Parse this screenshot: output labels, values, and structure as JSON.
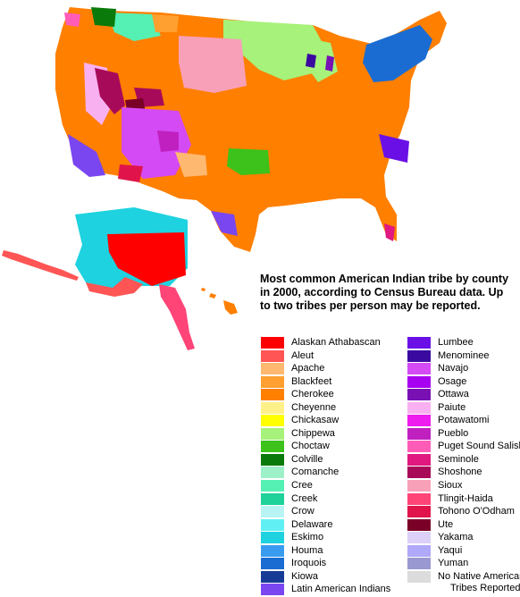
{
  "caption": "Most common American Indian tribe by county in 2000, according to Census Bureau data. Up to two tribes per person may be reported.",
  "legend": {
    "column1": [
      {
        "label": "Alaskan Athabascan",
        "color": "#ff0000"
      },
      {
        "label": "Aleut",
        "color": "#ff5555"
      },
      {
        "label": "Apache",
        "color": "#ffb870"
      },
      {
        "label": "Blackfeet",
        "color": "#ffa030"
      },
      {
        "label": "Cherokee",
        "color": "#ff7f00"
      },
      {
        "label": "Cheyenne",
        "color": "#fff08a"
      },
      {
        "label": "Chickasaw",
        "color": "#ffff00"
      },
      {
        "label": "Chippewa",
        "color": "#a6f27a"
      },
      {
        "label": "Choctaw",
        "color": "#3cc21a"
      },
      {
        "label": "Colville",
        "color": "#0a7a0a"
      },
      {
        "label": "Comanche",
        "color": "#9ef0c8"
      },
      {
        "label": "Cree",
        "color": "#55f0b4"
      },
      {
        "label": "Creek",
        "color": "#1ed29a"
      },
      {
        "label": "Crow",
        "color": "#b8f4f4"
      },
      {
        "label": "Delaware",
        "color": "#60f0f4"
      },
      {
        "label": "Eskimo",
        "color": "#1ed2e0"
      },
      {
        "label": "Houma",
        "color": "#3a9cf0"
      },
      {
        "label": "Iroquois",
        "color": "#1a6cd2"
      },
      {
        "label": "Kiowa",
        "color": "#163c96"
      },
      {
        "label": "Latin American Indians",
        "color": "#7a46f0"
      }
    ],
    "column2": [
      {
        "label": "Lumbee",
        "color": "#6a10e6"
      },
      {
        "label": "Menominee",
        "color": "#3a0aa0"
      },
      {
        "label": "Navajo",
        "color": "#d44af4"
      },
      {
        "label": "Osage",
        "color": "#a800f0"
      },
      {
        "label": "Ottawa",
        "color": "#7810b4"
      },
      {
        "label": "Paiute",
        "color": "#f8b0f0"
      },
      {
        "label": "Potawatomi",
        "color": "#ee1cee"
      },
      {
        "label": "Pueblo",
        "color": "#c020c0"
      },
      {
        "label": "Puget Sound Salish",
        "color": "#ff5cb8"
      },
      {
        "label": "Seminole",
        "color": "#e01880"
      },
      {
        "label": "Shoshone",
        "color": "#a80a5a"
      },
      {
        "label": "Sioux",
        "color": "#f8a0b8"
      },
      {
        "label": "Tlingit-Haida",
        "color": "#ff4478"
      },
      {
        "label": "Tohono O'Odham",
        "color": "#e0144a"
      },
      {
        "label": "Ute",
        "color": "#7a0028"
      },
      {
        "label": "Yakama",
        "color": "#dcd0f8"
      },
      {
        "label": "Yaqui",
        "color": "#b0a8f8"
      },
      {
        "label": "Yuman",
        "color": "#9a98d0"
      },
      {
        "label": "No Native American",
        "label2": "Tribes Reported",
        "color": "#dcdcdc"
      }
    ]
  }
}
